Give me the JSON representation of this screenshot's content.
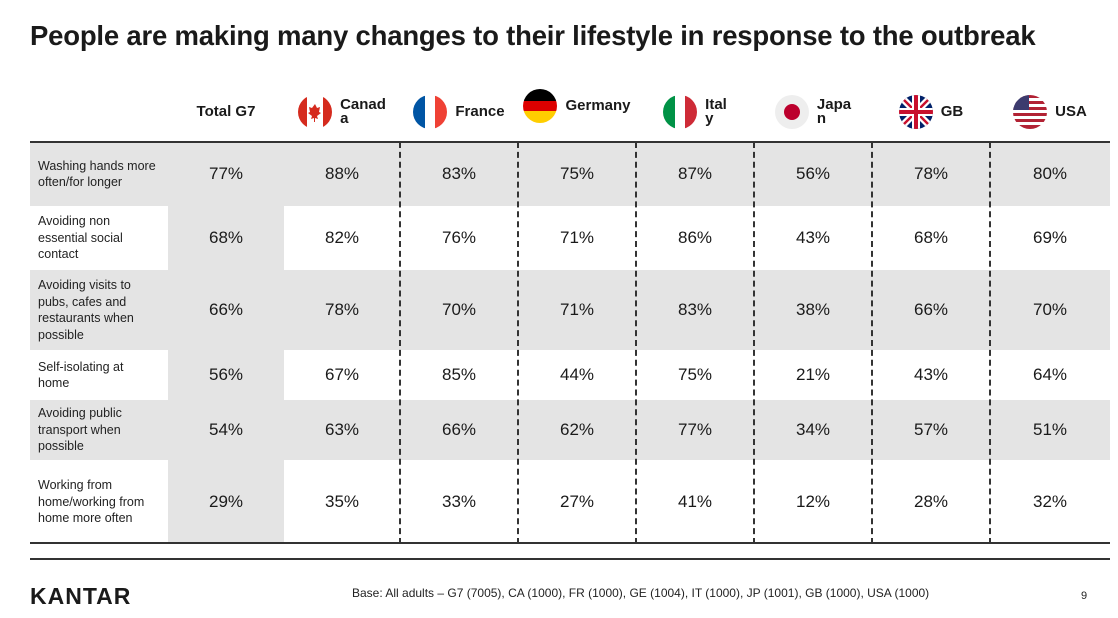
{
  "title": "People are making many changes to their lifestyle in response to the outbreak",
  "columns": [
    {
      "label": "Total G7",
      "flag": "none"
    },
    {
      "label": "Canad\na",
      "flag": "canada-flag-icon"
    },
    {
      "label": "France",
      "flag": "france-flag-icon"
    },
    {
      "label": "Germany",
      "flag": "germany-flag-icon"
    },
    {
      "label": "Ital\ny",
      "flag": "italy-flag-icon"
    },
    {
      "label": "Japa\nn",
      "flag": "japan-flag-icon"
    },
    {
      "label": "GB",
      "flag": "uk-flag-icon"
    },
    {
      "label": "USA",
      "flag": "usa-flag-icon"
    }
  ],
  "rows": [
    {
      "label": "Washing hands more often/for longer",
      "values": [
        "77%",
        "88%",
        "83%",
        "75%",
        "87%",
        "56%",
        "78%",
        "80%"
      ]
    },
    {
      "label": "Avoiding non essential social contact",
      "values": [
        "68%",
        "82%",
        "76%",
        "71%",
        "86%",
        "43%",
        "68%",
        "69%"
      ]
    },
    {
      "label": "Avoiding visits to pubs, cafes and restaurants when possible",
      "values": [
        "66%",
        "78%",
        "70%",
        "71%",
        "83%",
        "38%",
        "66%",
        "70%"
      ]
    },
    {
      "label": "Self-isolating at home",
      "values": [
        "56%",
        "67%",
        "85%",
        "44%",
        "75%",
        "21%",
        "43%",
        "64%"
      ]
    },
    {
      "label": "Avoiding public transport when possible",
      "values": [
        "54%",
        "63%",
        "66%",
        "62%",
        "77%",
        "34%",
        "57%",
        "51%"
      ]
    },
    {
      "label": "Working from home/working from home more often",
      "values": [
        "29%",
        "35%",
        "33%",
        "27%",
        "41%",
        "12%",
        "28%",
        "32%"
      ]
    }
  ],
  "footer": {
    "logo": "KANTAR",
    "base": "Base: All adults – G7 (7005), CA (1000), FR (1000), GE (1004), IT (1000), JP (1001), GB (1000), USA (1000)",
    "page": "9"
  },
  "colors": {
    "shade": "#e4e4e4",
    "canada_red": "#d52b1e",
    "france_blue": "#0055a4",
    "italy_green": "#009246"
  }
}
